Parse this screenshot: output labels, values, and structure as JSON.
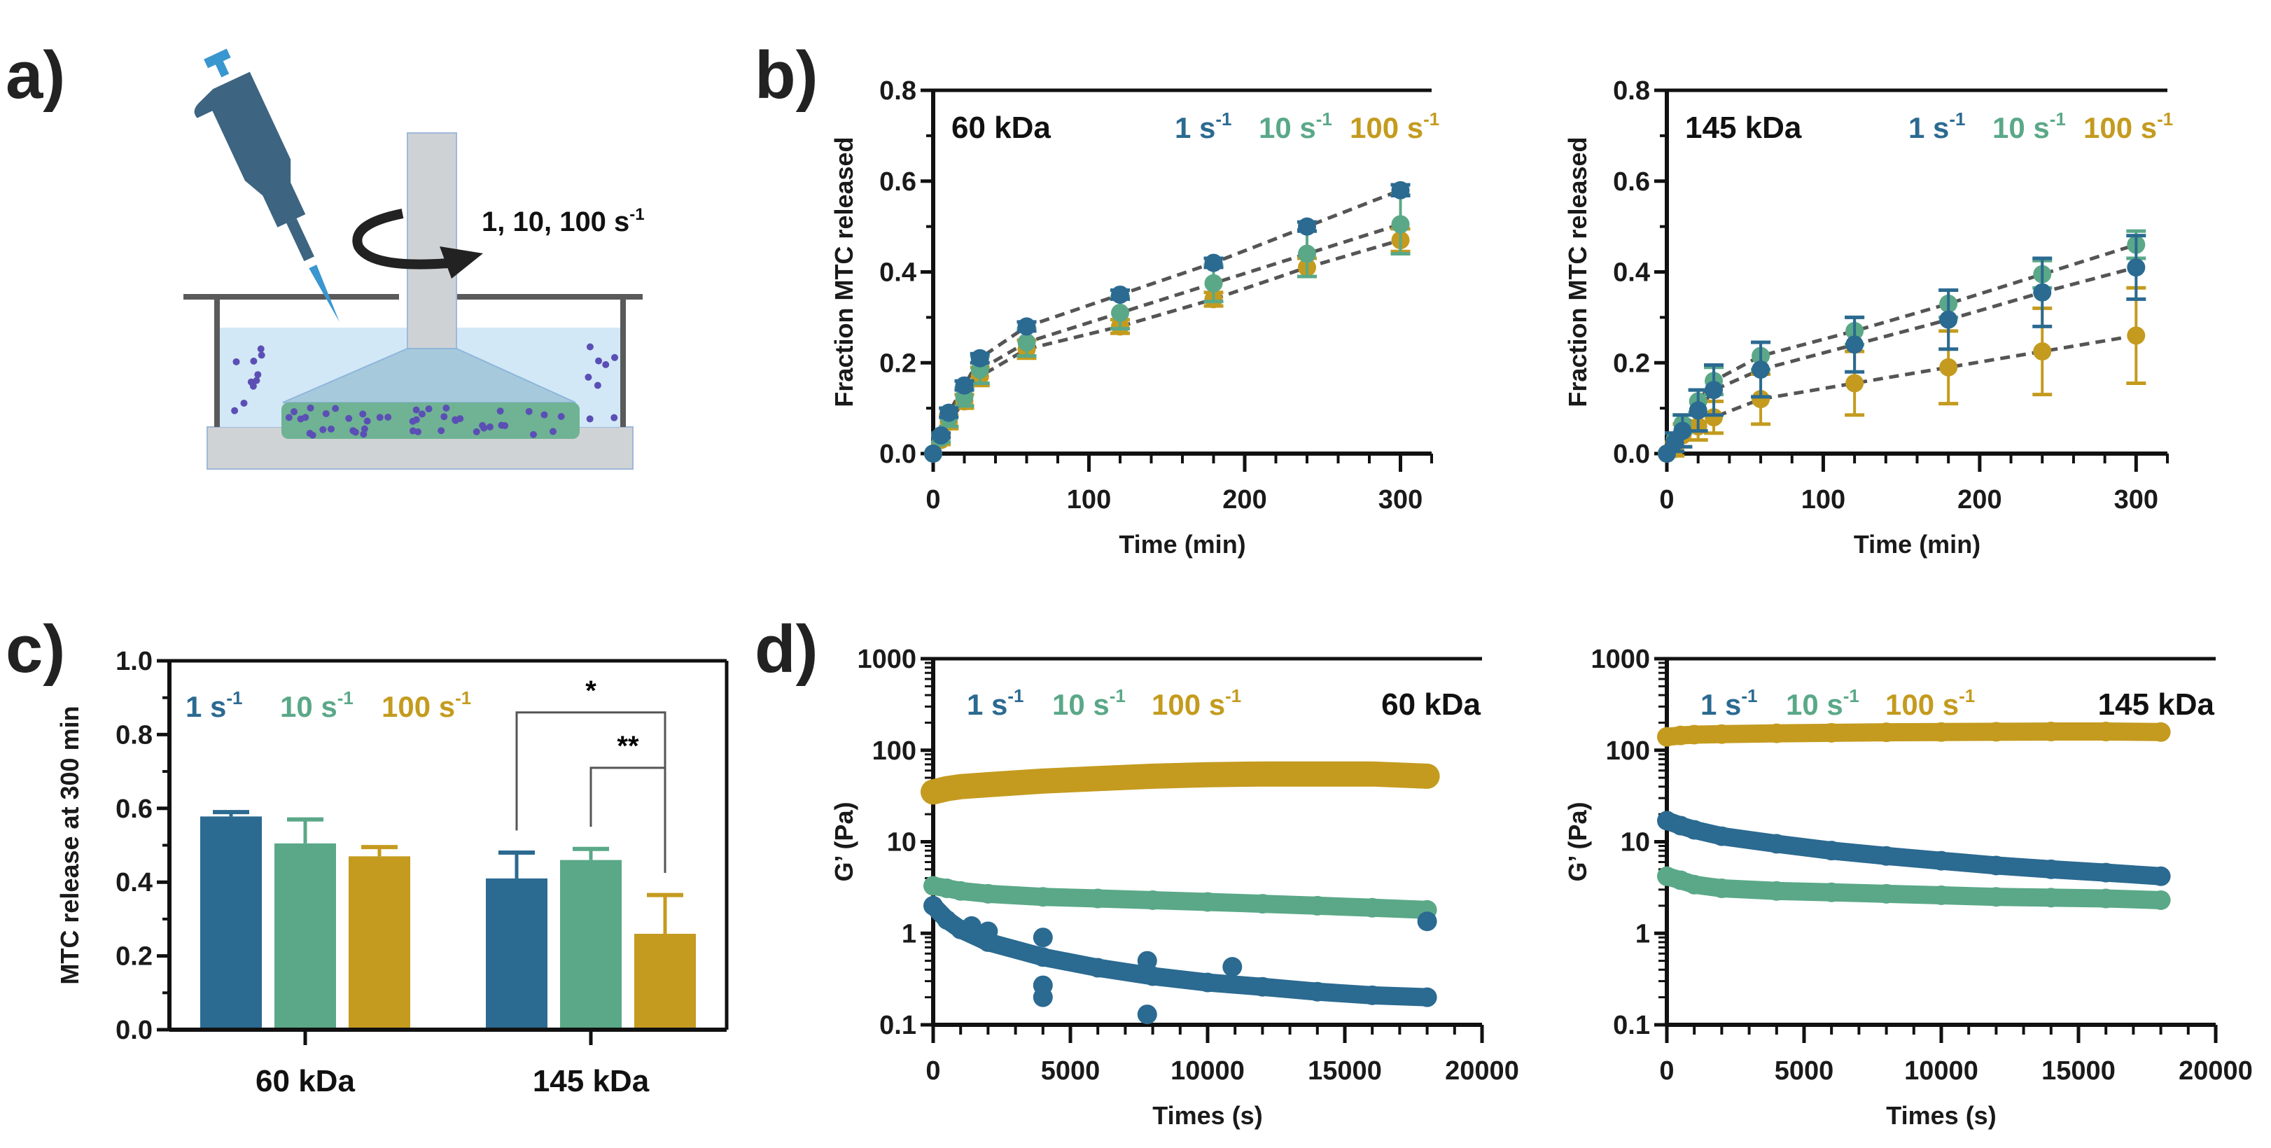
{
  "panel_labels": {
    "a": "a)",
    "b": "b)",
    "c": "c)",
    "d": "d)"
  },
  "schematic": {
    "shear_label": "1, 10, 100 s",
    "shear_sup": "-1"
  },
  "colors": {
    "s1": "#2b6a91",
    "s10": "#5aa888",
    "s100": "#c49b1f",
    "dash": "#555555",
    "pipette": "#3d6480",
    "pipette_accent": "#3a96cf",
    "dots": "#5b4fb5"
  },
  "legend": [
    {
      "base": "1 s",
      "sup": "-1"
    },
    {
      "base": "10 s",
      "sup": "-1"
    },
    {
      "base": "100 s",
      "sup": "-1"
    }
  ],
  "chart_data": [
    {
      "type": "line",
      "panel": "b",
      "title": "60 kDa",
      "xlabel": "Time (min)",
      "ylabel": "Fraction MTC released",
      "xlim": [
        0,
        320
      ],
      "ylim": [
        0,
        0.8
      ],
      "xticks": [
        "0",
        "100",
        "200",
        "300"
      ],
      "yticks": [
        "0.0",
        "0.2",
        "0.4",
        "0.6",
        "0.8"
      ],
      "x": [
        0,
        5,
        10,
        20,
        30,
        60,
        120,
        180,
        240,
        300
      ],
      "series": [
        {
          "name": "100 s-1",
          "key": "s100",
          "values": [
            0,
            0.03,
            0.07,
            0.115,
            0.17,
            0.23,
            0.28,
            0.34,
            0.41,
            0.47
          ],
          "errors": [
            0,
            0.01,
            0.015,
            0.015,
            0.02,
            0.02,
            0.015,
            0.015,
            0.02,
            0.025
          ]
        },
        {
          "name": "10 s-1",
          "key": "s10",
          "values": [
            0,
            0.035,
            0.08,
            0.125,
            0.185,
            0.245,
            0.31,
            0.375,
            0.44,
            0.505
          ],
          "errors": [
            0,
            0.01,
            0.02,
            0.02,
            0.03,
            0.03,
            0.035,
            0.04,
            0.05,
            0.065
          ]
        },
        {
          "name": "1 s-1",
          "key": "s1",
          "values": [
            0,
            0.04,
            0.09,
            0.15,
            0.21,
            0.28,
            0.35,
            0.42,
            0.5,
            0.58
          ],
          "errors": [
            0,
            0.005,
            0.01,
            0.01,
            0.01,
            0.01,
            0.01,
            0.01,
            0.01,
            0.012
          ]
        }
      ]
    },
    {
      "type": "line",
      "panel": "b",
      "title": "145 kDa",
      "xlabel": "Time (min)",
      "ylabel": "Fraction MTC released",
      "xlim": [
        0,
        320
      ],
      "ylim": [
        0,
        0.8
      ],
      "xticks": [
        "0",
        "100",
        "200",
        "300"
      ],
      "yticks": [
        "0.0",
        "0.2",
        "0.4",
        "0.6",
        "0.8"
      ],
      "x": [
        0,
        5,
        10,
        20,
        30,
        60,
        120,
        180,
        240,
        300
      ],
      "series": [
        {
          "name": "100 s-1",
          "key": "s100",
          "values": [
            0,
            0.01,
            0.04,
            0.06,
            0.08,
            0.12,
            0.155,
            0.19,
            0.225,
            0.26
          ],
          "errors": [
            0,
            0.015,
            0.025,
            0.03,
            0.035,
            0.055,
            0.07,
            0.08,
            0.095,
            0.105
          ]
        },
        {
          "name": "10 s-1",
          "key": "s10",
          "values": [
            0,
            0.03,
            0.065,
            0.115,
            0.16,
            0.215,
            0.27,
            0.33,
            0.395,
            0.46
          ],
          "errors": [
            0,
            0.015,
            0.02,
            0.025,
            0.03,
            0.03,
            0.03,
            0.03,
            0.03,
            0.03
          ]
        },
        {
          "name": "1 s-1",
          "key": "s1",
          "values": [
            0,
            0.025,
            0.05,
            0.095,
            0.14,
            0.185,
            0.24,
            0.295,
            0.355,
            0.41
          ],
          "errors": [
            0,
            0.02,
            0.035,
            0.045,
            0.055,
            0.06,
            0.06,
            0.065,
            0.075,
            0.07
          ]
        }
      ]
    },
    {
      "type": "bar",
      "panel": "c",
      "ylabel": "MTC release at 300 min",
      "xlabel": "",
      "ylim": [
        0,
        1.0
      ],
      "yticks": [
        "0.0",
        "0.2",
        "0.4",
        "0.6",
        "0.8",
        "1.0"
      ],
      "categories": [
        "60 kDa",
        "145 kDa"
      ],
      "series": [
        {
          "name": "1 s-1",
          "key": "s1",
          "values": [
            0.578,
            0.41
          ],
          "errors": [
            0.012,
            0.07
          ]
        },
        {
          "name": "10 s-1",
          "key": "s10",
          "values": [
            0.505,
            0.46
          ],
          "errors": [
            0.065,
            0.03
          ]
        },
        {
          "name": "100 s-1",
          "key": "s100",
          "values": [
            0.47,
            0.26
          ],
          "errors": [
            0.025,
            0.105
          ]
        }
      ],
      "significance": [
        {
          "category": 1,
          "from": 0,
          "to": 2,
          "label": "*",
          "level": 0.86
        },
        {
          "category": 1,
          "from": 1,
          "to": 2,
          "label": "**",
          "level": 0.71
        }
      ]
    },
    {
      "type": "scatter",
      "panel": "d",
      "title": "60 kDa",
      "xlabel": "Times (s)",
      "ylabel": "G’ (Pa)",
      "yscale": "log",
      "xlim": [
        0,
        20000
      ],
      "ylim": [
        0.1,
        1000
      ],
      "xticks": [
        "0",
        "5000",
        "10000",
        "15000",
        "20000"
      ],
      "yticks": [
        "0.1",
        "1",
        "10",
        "100",
        "1000"
      ],
      "x": [
        0,
        500,
        1000,
        2000,
        4000,
        6000,
        8000,
        10000,
        12000,
        14000,
        16000,
        18000
      ],
      "series": [
        {
          "name": "100 s-1",
          "key": "s100",
          "values": [
            35,
            38,
            40,
            42,
            46,
            49,
            52,
            54,
            55,
            55,
            55,
            52
          ]
        },
        {
          "name": "10 s-1",
          "key": "s10",
          "values": [
            3.3,
            3.1,
            2.9,
            2.7,
            2.5,
            2.4,
            2.3,
            2.2,
            2.1,
            2.0,
            1.9,
            1.8
          ]
        },
        {
          "name": "1 s-1",
          "key": "s1",
          "values": [
            2.0,
            1.4,
            1.1,
            0.8,
            0.55,
            0.42,
            0.34,
            0.29,
            0.26,
            0.23,
            0.21,
            0.2
          ],
          "outliers": [
            [
              1400,
              1.2
            ],
            [
              2000,
              1.05
            ],
            [
              4000,
              0.9
            ],
            [
              4000,
              0.27
            ],
            [
              4000,
              0.2
            ],
            [
              7800,
              0.5
            ],
            [
              7800,
              0.13
            ],
            [
              10900,
              0.43
            ],
            [
              18000,
              1.35
            ]
          ]
        }
      ]
    },
    {
      "type": "scatter",
      "panel": "d",
      "title": "145 kDa",
      "xlabel": "Times (s)",
      "ylabel": "G’ (Pa)",
      "yscale": "log",
      "xlim": [
        0,
        20000
      ],
      "ylim": [
        0.1,
        1000
      ],
      "xticks": [
        "0",
        "5000",
        "10000",
        "15000",
        "20000"
      ],
      "yticks": [
        "0.1",
        "1",
        "10",
        "100",
        "1000"
      ],
      "x": [
        0,
        500,
        1000,
        2000,
        4000,
        6000,
        8000,
        10000,
        12000,
        14000,
        16000,
        18000
      ],
      "series": [
        {
          "name": "100 s-1",
          "key": "s100",
          "values": [
            140,
            145,
            148,
            150,
            153,
            155,
            157,
            158,
            159,
            160,
            160,
            158
          ]
        },
        {
          "name": "10 s-1",
          "key": "s10",
          "values": [
            4.2,
            3.8,
            3.4,
            3.1,
            2.9,
            2.8,
            2.7,
            2.6,
            2.5,
            2.45,
            2.4,
            2.3
          ]
        },
        {
          "name": "1 s-1",
          "key": "s1",
          "values": [
            17,
            15,
            13.5,
            11.5,
            9.5,
            8,
            7,
            6.2,
            5.5,
            5,
            4.6,
            4.2
          ]
        }
      ]
    }
  ]
}
